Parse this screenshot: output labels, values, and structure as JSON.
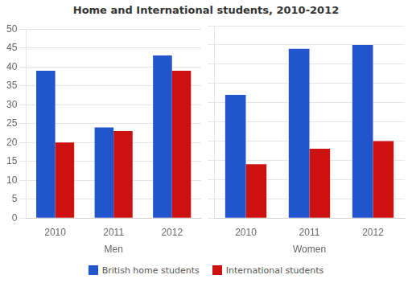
{
  "chart_data": [
    {
      "type": "bar",
      "title": "Home and International students, 2010-2012",
      "xlabel": "Men",
      "categories": [
        "2010",
        "2011",
        "2012"
      ],
      "series": [
        {
          "name": "British home students",
          "color": "#2255CC",
          "values": [
            39,
            24,
            43
          ]
        },
        {
          "name": "International students",
          "color": "#CC1111",
          "values": [
            20,
            23,
            39
          ]
        }
      ],
      "ylim": [
        0,
        50
      ],
      "yticks": [
        0,
        5,
        10,
        15,
        20,
        25,
        30,
        35,
        40,
        45,
        50
      ],
      "grid": true,
      "legend": "bottom"
    },
    {
      "type": "bar",
      "xlabel": "Women",
      "categories": [
        "2010",
        "2011",
        "2012"
      ],
      "series": [
        {
          "name": "British home students",
          "color": "#2255CC",
          "values": [
            32,
            44,
            45
          ]
        },
        {
          "name": "International students",
          "color": "#CC1111",
          "values": [
            14,
            18,
            20
          ]
        }
      ],
      "ylim": [
        0,
        50
      ],
      "yticks": [
        0,
        5,
        10,
        15,
        20,
        25,
        30,
        35,
        40,
        45,
        50
      ],
      "grid": true,
      "legend": "bottom",
      "tick_labels": "x"
    }
  ]
}
